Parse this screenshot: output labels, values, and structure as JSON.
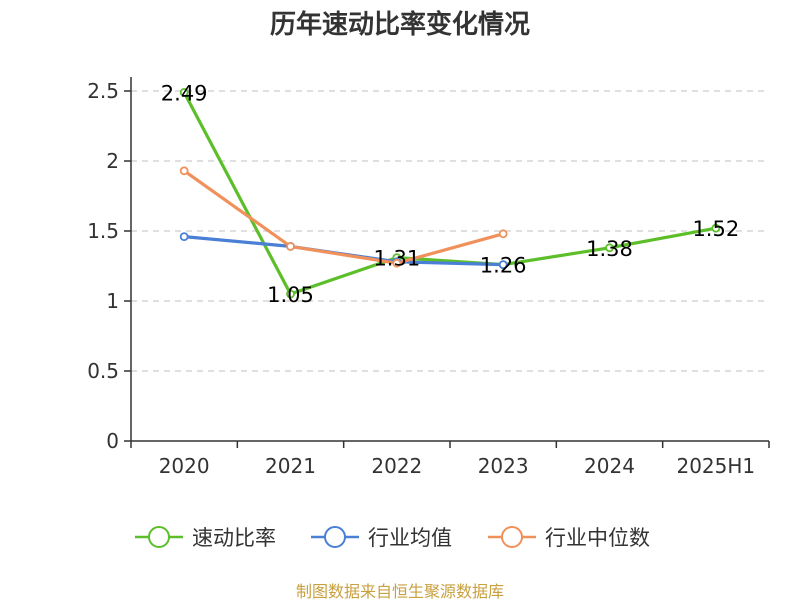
{
  "chart_data": {
    "type": "line",
    "title": "历年速动比率变化情况",
    "categories": [
      "2020",
      "2021",
      "2022",
      "2023",
      "2024",
      "2025H1"
    ],
    "y_ticks": [
      "0",
      "0.5",
      "1",
      "1.5",
      "2",
      "2.5"
    ],
    "ylim": [
      0,
      2.5
    ],
    "grid": "horizontal-dashed",
    "legend_position": "bottom",
    "series": [
      {
        "name": "速动比率",
        "color": "#5cbf2a",
        "values": [
          2.49,
          1.05,
          1.31,
          1.26,
          1.38,
          1.52
        ],
        "labels": [
          "2.49",
          "1.05",
          "1.31",
          "1.26",
          "1.38",
          "1.52"
        ]
      },
      {
        "name": "行业均值",
        "color": "#4a7fd6",
        "values": [
          1.46,
          1.39,
          1.28,
          1.26,
          null,
          null
        ]
      },
      {
        "name": "行业中位数",
        "color": "#f0905a",
        "values": [
          1.93,
          1.39,
          1.27,
          1.48,
          null,
          null
        ]
      }
    ]
  },
  "source": "制图数据来自恒生聚源数据库"
}
